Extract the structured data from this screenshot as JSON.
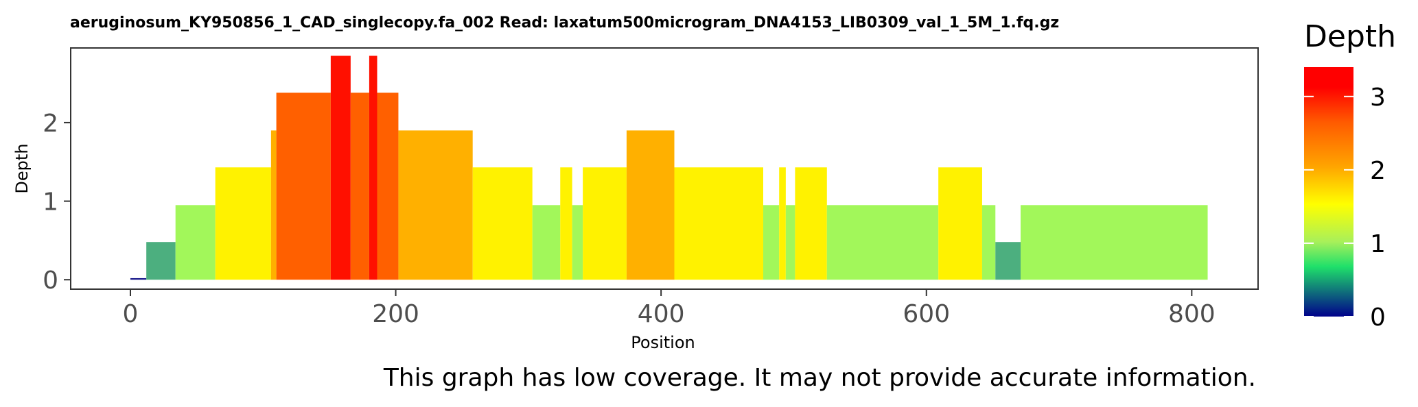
{
  "chart_data": {
    "type": "bar",
    "title": "aeruginosum_KY950856_1_CAD_singlecopy.fa_002   Read: laxatum500microgram_DNA4153_LIB0309_val_1_5M_1.fq.gz",
    "xlabel": "Position",
    "ylabel": "Depth",
    "xlim": [
      -45,
      850
    ],
    "ylim": [
      -0.12,
      2.95
    ],
    "xticks": [
      0,
      200,
      400,
      600,
      800
    ],
    "yticks": [
      0,
      1,
      2
    ],
    "legend": {
      "title": "Depth",
      "position": "right",
      "ticks": [
        0,
        1,
        2,
        3
      ],
      "range": [
        0,
        3.4
      ],
      "colors": [
        "#00008b",
        "#1fe06a",
        "#a8f05a",
        "#ffff00",
        "#ffa500",
        "#ff5a00",
        "#ff0000"
      ]
    },
    "bars": [
      {
        "x0": 0,
        "x1": 12,
        "depth": 0.02,
        "color": "#1a1a8c"
      },
      {
        "x0": 12,
        "x1": 34,
        "depth": 0.48,
        "color": "#4caf7f"
      },
      {
        "x0": 34,
        "x1": 64,
        "depth": 0.95,
        "color": "#a2f75a"
      },
      {
        "x0": 64,
        "x1": 106,
        "depth": 1.43,
        "color": "#fff200"
      },
      {
        "x0": 106,
        "x1": 110,
        "depth": 1.9,
        "color": "#ffb000"
      },
      {
        "x0": 110,
        "x1": 151,
        "depth": 2.38,
        "color": "#ff6000"
      },
      {
        "x0": 151,
        "x1": 166,
        "depth": 2.85,
        "color": "#ff1000"
      },
      {
        "x0": 166,
        "x1": 180,
        "depth": 2.38,
        "color": "#ff6000"
      },
      {
        "x0": 180,
        "x1": 186,
        "depth": 2.85,
        "color": "#ff1000"
      },
      {
        "x0": 186,
        "x1": 202,
        "depth": 2.38,
        "color": "#ff6000"
      },
      {
        "x0": 202,
        "x1": 258,
        "depth": 1.9,
        "color": "#ffb000"
      },
      {
        "x0": 258,
        "x1": 303,
        "depth": 1.43,
        "color": "#fff200"
      },
      {
        "x0": 303,
        "x1": 324,
        "depth": 0.95,
        "color": "#a2f75a"
      },
      {
        "x0": 324,
        "x1": 333,
        "depth": 1.43,
        "color": "#fff200"
      },
      {
        "x0": 333,
        "x1": 341,
        "depth": 0.95,
        "color": "#a2f75a"
      },
      {
        "x0": 341,
        "x1": 374,
        "depth": 1.43,
        "color": "#fff200"
      },
      {
        "x0": 374,
        "x1": 410,
        "depth": 1.9,
        "color": "#ffb000"
      },
      {
        "x0": 410,
        "x1": 477,
        "depth": 1.43,
        "color": "#fff200"
      },
      {
        "x0": 477,
        "x1": 489,
        "depth": 0.95,
        "color": "#a2f75a"
      },
      {
        "x0": 489,
        "x1": 494,
        "depth": 1.43,
        "color": "#fff200"
      },
      {
        "x0": 494,
        "x1": 501,
        "depth": 0.95,
        "color": "#a2f75a"
      },
      {
        "x0": 501,
        "x1": 525,
        "depth": 1.43,
        "color": "#fff200"
      },
      {
        "x0": 525,
        "x1": 609,
        "depth": 0.95,
        "color": "#a2f75a"
      },
      {
        "x0": 609,
        "x1": 642,
        "depth": 1.43,
        "color": "#fff200"
      },
      {
        "x0": 642,
        "x1": 652,
        "depth": 0.95,
        "color": "#a2f75a"
      },
      {
        "x0": 652,
        "x1": 671,
        "depth": 0.48,
        "color": "#4caf7f"
      },
      {
        "x0": 671,
        "x1": 812,
        "depth": 0.95,
        "color": "#a2f75a"
      }
    ]
  },
  "footer_note": "This graph has low coverage. It may not provide accurate information."
}
